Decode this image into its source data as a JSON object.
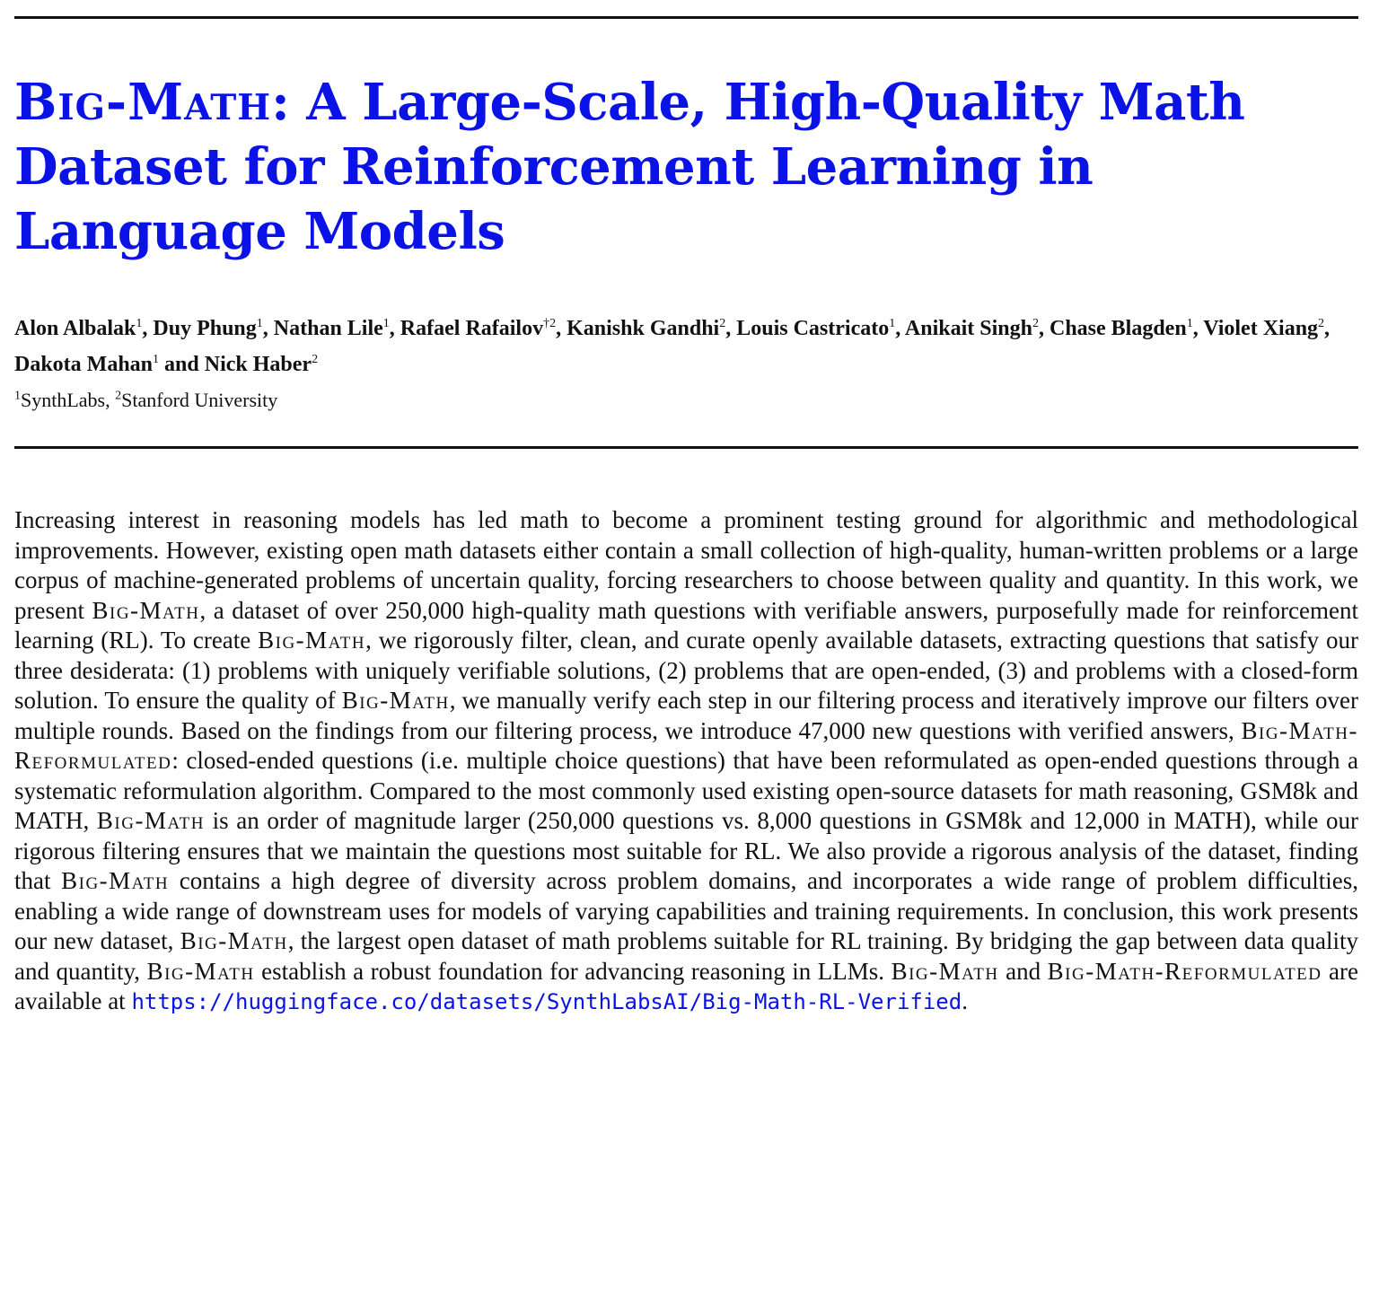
{
  "title": {
    "part1": "Big-Math",
    "part2": ": A Large-Scale, High-Quality Math Dataset for Reinforcement Learning in Language Models"
  },
  "authors": [
    {
      "name": "Alon Albalak",
      "mark": "1"
    },
    {
      "name": "Duy Phung",
      "mark": "1"
    },
    {
      "name": "Nathan Lile",
      "mark": "1"
    },
    {
      "name": "Rafael Rafailov",
      "mark": "†2"
    },
    {
      "name": "Kanishk Gandhi",
      "mark": "2"
    },
    {
      "name": "Louis Castricato",
      "mark": "1"
    },
    {
      "name": "Anikait Singh",
      "mark": "2"
    },
    {
      "name": "Chase Blagden",
      "mark": "1"
    },
    {
      "name": "Violet Xiang",
      "mark": "2"
    },
    {
      "name": "Dakota Mahan",
      "mark": "1"
    },
    {
      "name": "Nick Haber",
      "mark": "2"
    }
  ],
  "authors_sep": ", ",
  "authors_and": " and ",
  "affiliations": [
    {
      "mark": "1",
      "name": "SynthLabs"
    },
    {
      "mark": "2",
      "name": "Stanford University"
    }
  ],
  "affil_sep": ", ",
  "abstract": {
    "segments": [
      {
        "text": "Increasing interest in reasoning models has led math to become a prominent testing ground for algorithmic and methodological improvements. However, existing open math datasets either contain a small collection of high-quality, human-written problems or a large corpus of machine-generated problems of uncertain quality, forcing researchers to choose between quality and quantity. In this work, we present "
      },
      {
        "text": "Big-Math",
        "sc": true
      },
      {
        "text": ", a dataset of over 250,000 high-quality math questions with verifiable answers, purposefully made for reinforcement learning (RL). To create "
      },
      {
        "text": "Big-Math",
        "sc": true
      },
      {
        "text": ", we rigorously filter, clean, and curate openly available datasets, extracting questions that satisfy our three desiderata: (1) problems with uniquely verifiable solutions, (2) problems that are open-ended, (3) and problems with a closed-form solution. To ensure the quality of "
      },
      {
        "text": "Big-Math",
        "sc": true
      },
      {
        "text": ", we manually verify each step in our filtering process and iteratively improve our filters over multiple rounds. Based on the findings from our filtering process, we introduce 47,000 new questions with verified answers, "
      },
      {
        "text": "Big-Math-Reformulated",
        "sc": true
      },
      {
        "text": ": closed-ended questions (i.e. multiple choice questions) that have been reformulated as open-ended questions through a systematic reformulation algorithm. Compared to the most commonly used existing open-source datasets for math reasoning, GSM8k and MATH, "
      },
      {
        "text": "Big-Math",
        "sc": true
      },
      {
        "text": " is an order of magnitude larger (250,000 questions vs. 8,000 questions in GSM8k and 12,000 in MATH), while our rigorous filtering ensures that we maintain the questions most suitable for RL. We also provide a rigorous analysis of the dataset, finding that "
      },
      {
        "text": "Big-Math",
        "sc": true
      },
      {
        "text": " contains a high degree of diversity across problem domains, and incorporates a wide range of problem difficulties, enabling a wide range of downstream uses for models of varying capabilities and training requirements. In conclusion, this work presents our new dataset, "
      },
      {
        "text": "Big-Math",
        "sc": true
      },
      {
        "text": ", the largest open dataset of math problems suitable for RL training. By bridging the gap between data quality and quantity, "
      },
      {
        "text": "Big-Math",
        "sc": true
      },
      {
        "text": " establish a robust foundation for advancing reasoning in LLMs. "
      },
      {
        "text": "Big-Math",
        "sc": true
      },
      {
        "text": "  and "
      },
      {
        "text": "Big-Math-Reformulated",
        "sc": true
      },
      {
        "text": " are available at "
      },
      {
        "text": "https://huggingface.co/datasets/SynthLabsAI/Big-Math-RL-Verified",
        "link": true
      },
      {
        "text": "."
      }
    ]
  },
  "colors": {
    "title": "#0a12e6",
    "link": "#0a12e6",
    "text": "#111111"
  }
}
